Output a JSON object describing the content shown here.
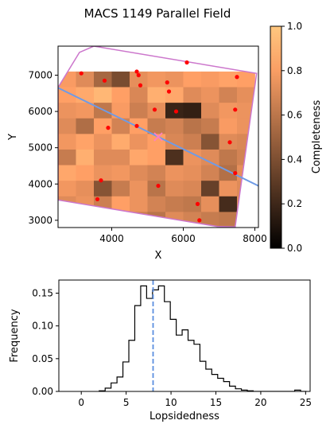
{
  "chart_data": [
    {
      "type": "heatmap",
      "title": "MACS 1149 Parallel Field",
      "xlabel": "X",
      "ylabel": "Y",
      "xlim": [
        2500,
        8100
      ],
      "ylim": [
        2800,
        7800
      ],
      "x_ticks": [
        4000,
        6000,
        8000
      ],
      "y_ticks": [
        3000,
        4000,
        5000,
        6000,
        7000
      ],
      "colorbar": {
        "label": "Completeness",
        "range": [
          0.0,
          1.0
        ],
        "ticks": [
          "0.0",
          "0.2",
          "0.4",
          "0.6",
          "0.8",
          "1.0"
        ],
        "colormap": "copper"
      },
      "grid": {
        "x_edges": [
          2500,
          3000,
          3500,
          4000,
          4500,
          5000,
          5500,
          6000,
          6500,
          7000,
          7500,
          8000
        ],
        "y_edges": [
          2800,
          3230,
          3660,
          4090,
          4520,
          4950,
          5380,
          5810,
          6240,
          6670,
          7100,
          7530
        ],
        "values_top_to_bottom": [
          [
            0.78,
            0.7,
            0.52,
            0.38,
            0.72,
            0.76,
            0.74,
            0.8,
            0.78,
            0.82,
            0.8
          ],
          [
            0.8,
            0.85,
            0.92,
            0.8,
            0.68,
            0.88,
            0.84,
            0.7,
            0.74,
            0.66,
            0.72
          ],
          [
            0.74,
            0.76,
            0.6,
            0.78,
            0.64,
            0.72,
            0.18,
            0.16,
            0.7,
            0.76,
            0.74
          ],
          [
            0.7,
            0.55,
            0.8,
            0.66,
            0.8,
            0.62,
            0.66,
            0.58,
            0.62,
            0.78,
            0.74
          ],
          [
            0.76,
            0.82,
            0.74,
            0.86,
            0.74,
            0.8,
            0.68,
            0.64,
            0.42,
            0.7,
            0.68
          ],
          [
            0.62,
            0.88,
            0.7,
            0.7,
            0.84,
            0.8,
            0.24,
            0.74,
            0.7,
            0.6,
            0.66
          ],
          [
            0.84,
            0.8,
            0.74,
            0.76,
            0.7,
            0.66,
            0.74,
            0.72,
            0.66,
            0.56,
            0.72
          ],
          [
            0.76,
            0.72,
            0.42,
            0.62,
            0.74,
            0.58,
            0.7,
            0.68,
            0.32,
            0.74,
            0.7
          ],
          [
            0.7,
            0.74,
            0.64,
            0.8,
            0.74,
            0.66,
            0.62,
            0.6,
            0.72,
            0.22,
            0.7
          ],
          [
            0.66,
            0.7,
            0.78,
            0.72,
            0.64,
            0.58,
            0.7,
            0.66,
            0.62,
            0.6,
            0.68
          ]
        ]
      },
      "footprint_outline": [
        [
          3100,
          7630
        ],
        [
          3500,
          7800
        ],
        [
          8050,
          7050
        ],
        [
          7450,
          2820
        ],
        [
          6950,
          2830
        ],
        [
          2500,
          3560
        ],
        [
          2500,
          6660
        ]
      ],
      "line": {
        "x": [
          2500,
          8100
        ],
        "y": [
          6650,
          3950
        ]
      },
      "points": {
        "x": [
          3150,
          3800,
          3900,
          3700,
          3600,
          4700,
          4750,
          4800,
          4700,
          5300,
          5550,
          5600,
          5800,
          6100,
          5200,
          6400,
          6450,
          7500,
          7450,
          7300,
          7450
        ],
        "y": [
          7050,
          6850,
          5550,
          4100,
          3580,
          7100,
          7000,
          6720,
          5600,
          3950,
          6800,
          6550,
          6000,
          7350,
          6050,
          3450,
          3000,
          6950,
          6050,
          5150,
          4300
        ]
      },
      "marker": {
        "x": 5300,
        "y": 5300
      }
    },
    {
      "type": "histogram",
      "title": "",
      "xlabel": "Lopsidedness",
      "ylabel": "Frequency",
      "xlim": [
        -2.5,
        25.5
      ],
      "ylim": [
        0,
        0.17
      ],
      "x_ticks": [
        0,
        5,
        10,
        15,
        20,
        25
      ],
      "y_ticks": [
        0.0,
        0.05,
        0.1,
        0.15
      ],
      "y_tick_labels": [
        "0.00",
        "0.05",
        "0.10",
        "0.15"
      ],
      "bin_width": 0.66,
      "bins_start": 2.0,
      "values": [
        0.001,
        0.005,
        0.013,
        0.022,
        0.045,
        0.078,
        0.131,
        0.161,
        0.142,
        0.155,
        0.161,
        0.137,
        0.11,
        0.086,
        0.094,
        0.078,
        0.072,
        0.046,
        0.034,
        0.026,
        0.02,
        0.015,
        0.008,
        0.004,
        0.002,
        0.001,
        0.0,
        0.0,
        0.0,
        0.0,
        0.0,
        0.0,
        0.0,
        0.002,
        0.0
      ],
      "vline": 8.0
    }
  ],
  "colors": {
    "footprint": "#cc77cc",
    "line": "#6f9be6",
    "points": "#ff0000",
    "marker": "#ff80c0",
    "vline": "#5b8ee0",
    "hist_line": "#000000"
  }
}
